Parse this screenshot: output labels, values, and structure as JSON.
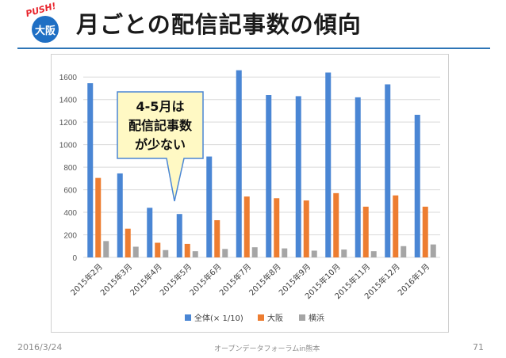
{
  "header": {
    "logo_push": "PUSH!",
    "logo_city": "大阪",
    "title": "月ごとの配信記事数の傾向"
  },
  "footer": {
    "date": "2016/3/24",
    "center": "オープンデータフォーラムin熊本",
    "page": "71"
  },
  "callout": {
    "lines": [
      "4-5月は",
      "配信記事数",
      "が少ない"
    ]
  },
  "colors": {
    "series_total": "#4a86d4",
    "series_osaka": "#ed7d31",
    "series_yokohama": "#a5a5a5",
    "title_rule": "#2e75b6",
    "logo": "#1f6fc4",
    "callout_fill": "#fff9c4"
  },
  "chart_data": {
    "type": "bar",
    "categories": [
      "2015年2月",
      "2015年3月",
      "2015年4月",
      "2015年5月",
      "2015年6月",
      "2015年7月",
      "2015年8月",
      "2015年9月",
      "2015年10月",
      "2015年11月",
      "2015年12月",
      "2016年1月"
    ],
    "series": [
      {
        "name": "全体(× 1/10)",
        "values": [
          1545,
          745,
          440,
          385,
          895,
          1660,
          1440,
          1430,
          1640,
          1420,
          1535,
          1265
        ]
      },
      {
        "name": "大阪",
        "values": [
          705,
          255,
          130,
          120,
          330,
          540,
          525,
          505,
          570,
          450,
          550,
          450
        ]
      },
      {
        "name": "横浜",
        "values": [
          145,
          95,
          65,
          55,
          75,
          90,
          80,
          60,
          70,
          55,
          100,
          115
        ]
      }
    ],
    "yticks": [
      0,
      200,
      400,
      600,
      800,
      1000,
      1200,
      1400,
      1600
    ],
    "ylim": [
      0,
      1700
    ],
    "grid": true,
    "legend": "bottom"
  }
}
